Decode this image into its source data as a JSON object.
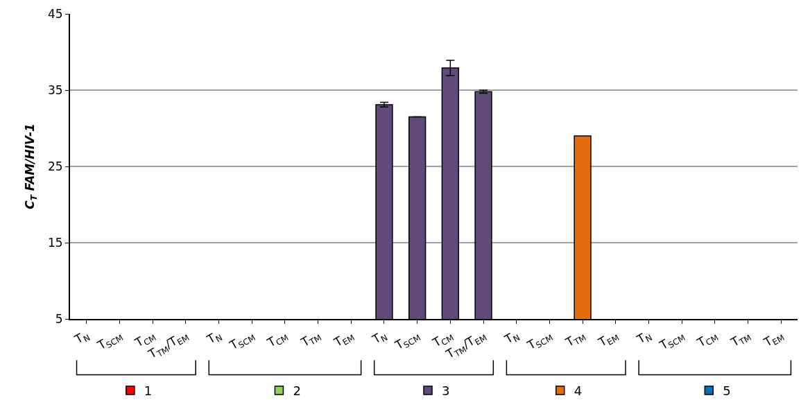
{
  "chart_data": {
    "type": "bar",
    "ylabel": "C$_{T}$ FAM/HIV-1",
    "categories": [
      "T$_{N}$",
      "T$_{SCM}$",
      "T$_{CM}$",
      "T$_{TM}$/T$_{EM}$",
      "T$_{N}$",
      "T$_{SCM}$",
      "T$_{CM}$",
      "T$_{TM}$",
      "T$_{EM}$",
      "T$_{N}$",
      "T$_{SCM}$",
      "T$_{CM}$",
      "T$_{TM}$/T$_{EM}$",
      "T$_{N}$",
      "T$_{SCM}$",
      "T$_{TM}$",
      "T$_{EM}$",
      "T$_{N}$",
      "T$_{SCM}$",
      "T$_{CM}$",
      "T$_{TM}$",
      "T$_{EM}$"
    ],
    "series": [
      {
        "name": "1",
        "color": "#ff0000",
        "values": [
          null,
          null,
          null,
          null,
          null,
          null,
          null,
          null,
          null,
          null,
          null,
          null,
          null,
          null,
          null,
          null,
          null,
          null,
          null,
          null,
          null,
          null
        ]
      },
      {
        "name": "2",
        "color": "#92d050",
        "values": [
          null,
          null,
          null,
          null,
          null,
          null,
          null,
          null,
          null,
          null,
          null,
          null,
          null,
          null,
          null,
          null,
          null,
          null,
          null,
          null,
          null,
          null
        ]
      },
      {
        "name": "3",
        "color": "#604a7b",
        "values": [
          null,
          null,
          null,
          null,
          null,
          null,
          null,
          null,
          null,
          33.1,
          31.5,
          37.9,
          34.8,
          null,
          null,
          null,
          null,
          null,
          null,
          null,
          null,
          null
        ],
        "errors": [
          null,
          null,
          null,
          null,
          null,
          null,
          null,
          null,
          null,
          0.3,
          null,
          1.0,
          0.2,
          null,
          null,
          null,
          null,
          null,
          null,
          null,
          null,
          null
        ]
      },
      {
        "name": "4",
        "color": "#e46c0a",
        "values": [
          null,
          null,
          null,
          null,
          null,
          null,
          null,
          null,
          null,
          null,
          null,
          null,
          null,
          null,
          null,
          29.0,
          null,
          null,
          null,
          null,
          null,
          null
        ]
      },
      {
        "name": "5",
        "color": "#0070c0",
        "values": [
          null,
          null,
          null,
          null,
          null,
          null,
          null,
          null,
          null,
          null,
          null,
          null,
          null,
          null,
          null,
          null,
          null,
          null,
          null,
          null,
          null,
          null
        ]
      }
    ],
    "ylim": [
      5,
      45
    ],
    "yticks": [
      5,
      15,
      25,
      35,
      45
    ],
    "grid": "y",
    "legend": "bottom"
  }
}
